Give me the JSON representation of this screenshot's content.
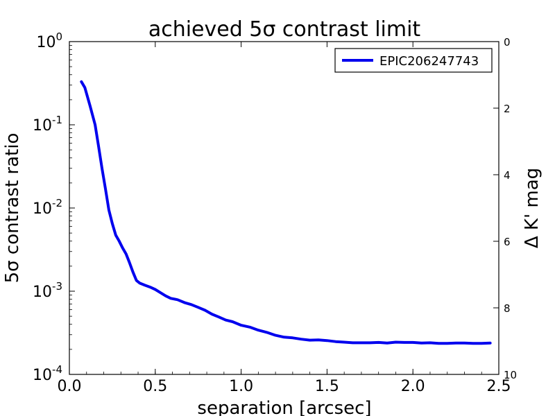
{
  "chart_data": {
    "type": "line",
    "title": "achieved 5σ contrast limit",
    "xlabel": "separation [arcsec]",
    "ylabel": "5σ contrast ratio",
    "y2label": "Δ K' mag",
    "xlim": [
      0.0,
      2.5
    ],
    "ylim": [
      0.0001,
      1
    ],
    "yscale": "log",
    "y2lim": [
      0,
      10
    ],
    "grid": false,
    "legend": "top-right",
    "x_ticks": [
      "0.0",
      "0.5",
      "1.0",
      "1.5",
      "2.0",
      "2.5"
    ],
    "y_ticks": [
      {
        "base": "10",
        "exp": "-4"
      },
      {
        "base": "10",
        "exp": "-3"
      },
      {
        "base": "10",
        "exp": "-2"
      },
      {
        "base": "10",
        "exp": "-1"
      },
      {
        "base": "10",
        "exp": "0"
      }
    ],
    "y2_ticks": [
      "0",
      "2",
      "4",
      "6",
      "8",
      "10"
    ],
    "series": [
      {
        "name": "EPIC206247743",
        "color": "#0000ee",
        "x": [
          0.07,
          0.09,
          0.12,
          0.15,
          0.17,
          0.19,
          0.21,
          0.23,
          0.25,
          0.27,
          0.29,
          0.31,
          0.33,
          0.35,
          0.37,
          0.39,
          0.41,
          0.44,
          0.47,
          0.5,
          0.53,
          0.56,
          0.59,
          0.63,
          0.67,
          0.71,
          0.75,
          0.79,
          0.83,
          0.87,
          0.91,
          0.95,
          1.0,
          1.05,
          1.1,
          1.15,
          1.2,
          1.25,
          1.3,
          1.35,
          1.4,
          1.45,
          1.5,
          1.55,
          1.6,
          1.65,
          1.7,
          1.75,
          1.8,
          1.85,
          1.9,
          1.95,
          2.0,
          2.05,
          2.1,
          2.15,
          2.2,
          2.25,
          2.3,
          2.35,
          2.4,
          2.45
        ],
        "y": [
          0.33,
          0.28,
          0.17,
          0.1,
          0.055,
          0.03,
          0.017,
          0.0095,
          0.0065,
          0.0047,
          0.004,
          0.0033,
          0.0028,
          0.0022,
          0.0017,
          0.00135,
          0.00125,
          0.00118,
          0.00112,
          0.00105,
          0.00096,
          0.00088,
          0.00082,
          0.00079,
          0.00073,
          0.00069,
          0.00064,
          0.00059,
          0.00053,
          0.00049,
          0.00045,
          0.00043,
          0.00039,
          0.00037,
          0.00034,
          0.00032,
          0.000295,
          0.00028,
          0.000275,
          0.000265,
          0.000258,
          0.00026,
          0.000255,
          0.000248,
          0.000244,
          0.00024,
          0.00024,
          0.00024,
          0.000242,
          0.000238,
          0.000244,
          0.000242,
          0.000242,
          0.000238,
          0.00024,
          0.000236,
          0.000236,
          0.000238,
          0.000238,
          0.000236,
          0.000236,
          0.000238
        ]
      }
    ]
  }
}
